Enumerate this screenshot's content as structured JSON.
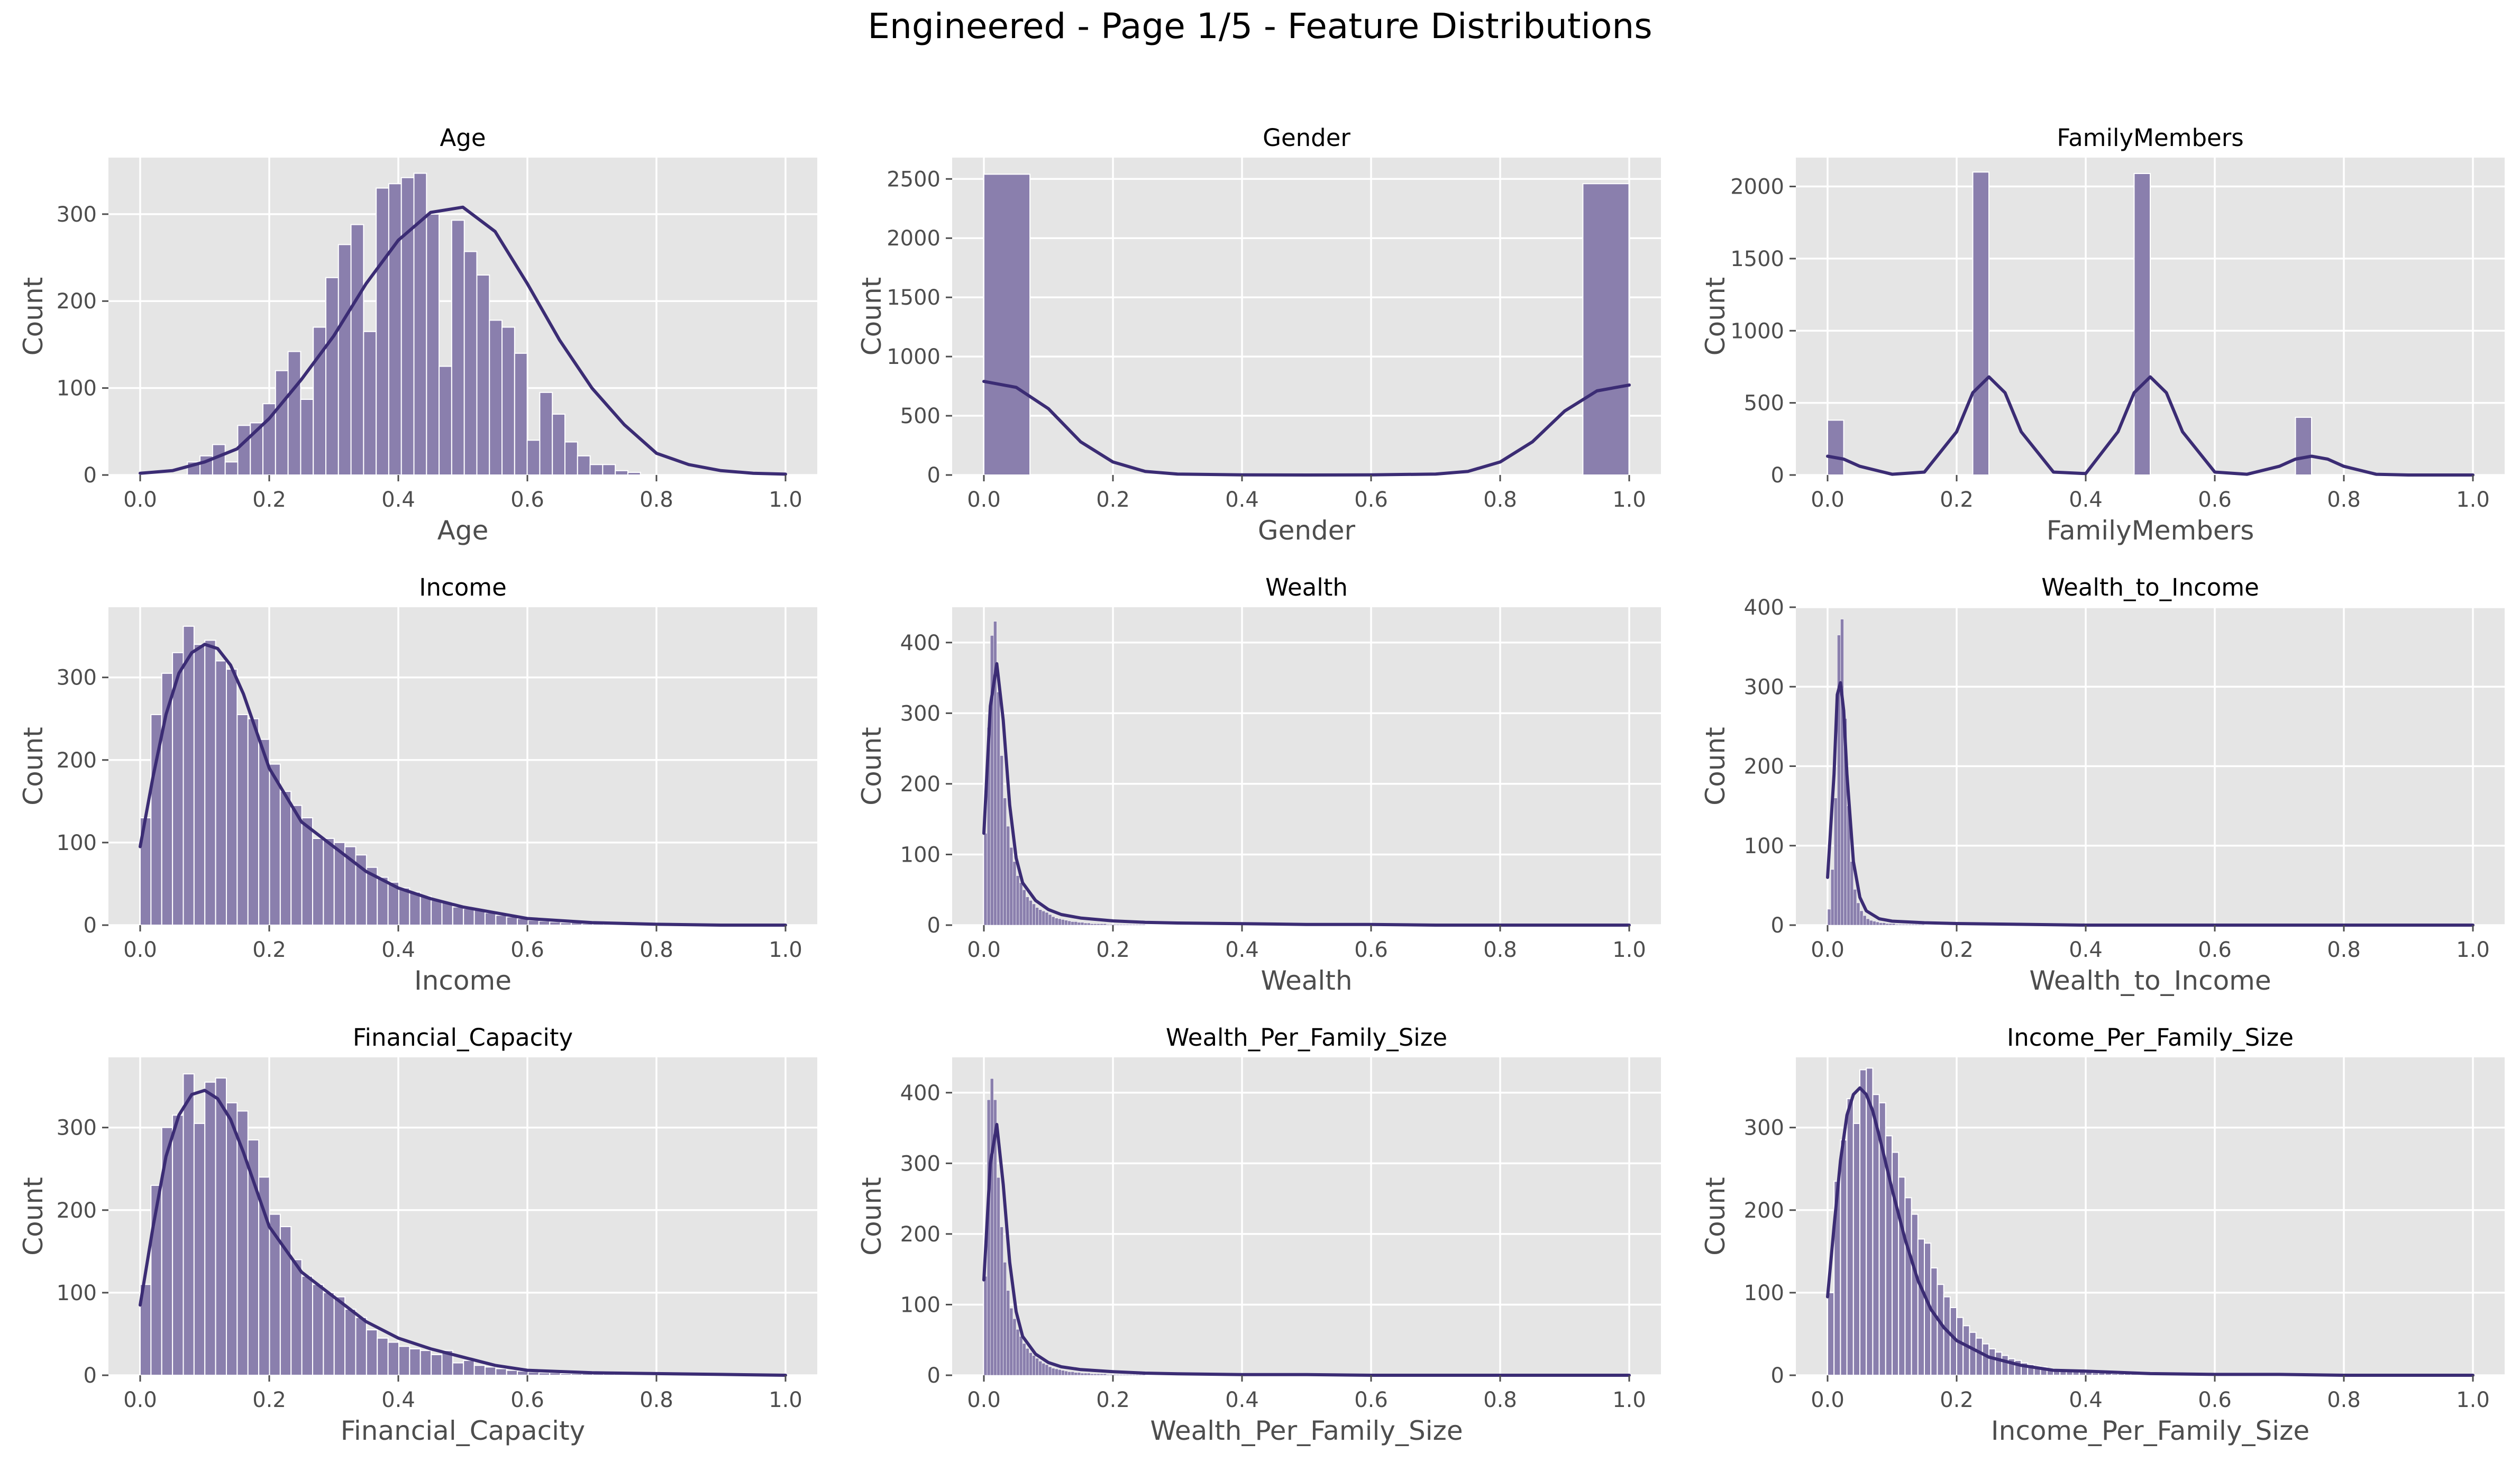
{
  "page": {
    "title": "Engineered - Page 1/5 - Feature Distributions"
  },
  "style": {
    "panel_bg": "#e5e5e5",
    "grid": "#ffffff",
    "bar_fill": "#8a7fad",
    "bar_edge": "#ffffff",
    "kde_line": "#3b2c74",
    "tick_text": "#4d4d4d",
    "label_text": "#4d4d4d",
    "title_text": "#000000"
  },
  "chart_data": [
    {
      "type": "histogram",
      "title": "Age",
      "xlabel": "Age",
      "ylabel": "Count",
      "xlim": [
        0,
        1
      ],
      "ylim": [
        0,
        365
      ],
      "xticks": [
        0,
        0.2,
        0.4,
        0.6,
        0.8,
        1
      ],
      "xtick_labels": [
        "0.0",
        "0.2",
        "0.4",
        "0.6",
        "0.8",
        "1.0"
      ],
      "yticks": [
        0,
        100,
        200,
        300
      ],
      "ytick_labels": [
        "0",
        "100",
        "200",
        "300"
      ],
      "bins": {
        "start": 0.0732,
        "width": 0.0195,
        "counts": [
          15,
          22,
          35,
          15,
          57,
          60,
          82,
          120,
          142,
          87,
          170,
          227,
          265,
          288,
          165,
          330,
          335,
          342,
          347,
          300,
          125,
          293,
          257,
          230,
          178,
          170,
          140,
          40,
          95,
          70,
          38,
          22,
          12,
          12,
          5,
          3
        ]
      },
      "kde": {
        "x": [
          0,
          0.05,
          0.1,
          0.15,
          0.2,
          0.25,
          0.3,
          0.35,
          0.4,
          0.45,
          0.5,
          0.55,
          0.6,
          0.65,
          0.7,
          0.75,
          0.8,
          0.85,
          0.9,
          0.95,
          1.0
        ],
        "y": [
          2,
          5,
          15,
          30,
          65,
          110,
          160,
          220,
          270,
          302,
          308,
          280,
          220,
          155,
          100,
          58,
          25,
          12,
          5,
          2,
          1
        ]
      }
    },
    {
      "type": "histogram",
      "title": "Gender",
      "xlabel": "Gender",
      "ylabel": "Count",
      "xlim": [
        0,
        1
      ],
      "ylim": [
        0,
        2680
      ],
      "xticks": [
        0,
        0.2,
        0.4,
        0.6,
        0.8,
        1
      ],
      "xtick_labels": [
        "0.0",
        "0.2",
        "0.4",
        "0.6",
        "0.8",
        "1.0"
      ],
      "yticks": [
        0,
        500,
        1000,
        1500,
        2000,
        2500
      ],
      "ytick_labels": [
        "0",
        "500",
        "1000",
        "1500",
        "2000",
        "2500"
      ],
      "bins": {
        "start": 0,
        "width": 0.0714,
        "counts": [
          2540,
          0,
          0,
          0,
          0,
          0,
          0,
          0,
          0,
          0,
          0,
          0,
          0,
          2460
        ]
      },
      "kde": {
        "x": [
          0,
          0.05,
          0.1,
          0.15,
          0.2,
          0.25,
          0.3,
          0.4,
          0.5,
          0.6,
          0.7,
          0.75,
          0.8,
          0.85,
          0.9,
          0.95,
          1.0
        ],
        "y": [
          790,
          740,
          560,
          280,
          110,
          30,
          8,
          1,
          0,
          1,
          8,
          30,
          110,
          280,
          540,
          710,
          760
        ]
      }
    },
    {
      "type": "histogram",
      "title": "FamilyMembers",
      "xlabel": "FamilyMembers",
      "ylabel": "Count",
      "xlim": [
        0,
        1
      ],
      "ylim": [
        0,
        2200
      ],
      "xticks": [
        0,
        0.2,
        0.4,
        0.6,
        0.8,
        1
      ],
      "xtick_labels": [
        "0.0",
        "0.2",
        "0.4",
        "0.6",
        "0.8",
        "1.0"
      ],
      "yticks": [
        0,
        500,
        1000,
        1500,
        2000
      ],
      "ytick_labels": [
        "0",
        "500",
        "1000",
        "1500",
        "2000"
      ],
      "bins": {
        "start": 0,
        "width": 0.025,
        "counts": [
          380,
          0,
          0,
          0,
          0,
          0,
          0,
          0,
          0,
          2100,
          0,
          0,
          0,
          0,
          0,
          0,
          0,
          0,
          0,
          2090,
          0,
          0,
          0,
          0,
          0,
          0,
          0,
          0,
          0,
          400,
          0,
          0,
          0,
          0,
          0,
          0,
          0,
          0,
          0,
          0
        ]
      },
      "kde": {
        "x": [
          0,
          0.025,
          0.05,
          0.1,
          0.15,
          0.2,
          0.225,
          0.25,
          0.275,
          0.3,
          0.35,
          0.4,
          0.45,
          0.475,
          0.5,
          0.525,
          0.55,
          0.6,
          0.65,
          0.7,
          0.725,
          0.75,
          0.775,
          0.8,
          0.85,
          0.9,
          1.0
        ],
        "y": [
          130,
          110,
          60,
          5,
          20,
          300,
          570,
          680,
          570,
          300,
          20,
          10,
          300,
          570,
          680,
          570,
          300,
          20,
          5,
          60,
          110,
          130,
          110,
          60,
          5,
          0,
          0
        ]
      }
    },
    {
      "type": "histogram",
      "title": "Income",
      "xlabel": "Income",
      "ylabel": "Count",
      "xlim": [
        0,
        1
      ],
      "ylim": [
        0,
        385
      ],
      "xticks": [
        0,
        0.2,
        0.4,
        0.6,
        0.8,
        1
      ],
      "xtick_labels": [
        "0.0",
        "0.2",
        "0.4",
        "0.6",
        "0.8",
        "1.0"
      ],
      "yticks": [
        0,
        100,
        200,
        300
      ],
      "ytick_labels": [
        "0",
        "100",
        "200",
        "300"
      ],
      "bins": {
        "start": 0,
        "width": 0.0167,
        "counts": [
          130,
          255,
          305,
          330,
          362,
          340,
          345,
          320,
          310,
          255,
          250,
          225,
          195,
          162,
          145,
          130,
          105,
          105,
          100,
          95,
          85,
          70,
          58,
          52,
          45,
          40,
          35,
          30,
          27,
          22,
          20,
          18,
          15,
          12,
          10,
          8,
          6,
          5,
          4,
          3,
          3,
          2,
          2,
          2,
          1,
          1,
          1,
          1,
          1,
          1,
          1,
          1,
          1,
          1,
          1,
          1,
          1,
          1,
          1,
          1
        ]
      },
      "kde": {
        "x": [
          0,
          0.02,
          0.04,
          0.06,
          0.08,
          0.1,
          0.12,
          0.14,
          0.16,
          0.18,
          0.2,
          0.25,
          0.3,
          0.35,
          0.4,
          0.45,
          0.5,
          0.55,
          0.6,
          0.7,
          0.8,
          0.9,
          1.0
        ],
        "y": [
          95,
          180,
          255,
          305,
          330,
          340,
          335,
          315,
          280,
          235,
          190,
          125,
          95,
          65,
          45,
          32,
          22,
          15,
          8,
          3,
          1,
          0,
          0
        ]
      }
    },
    {
      "type": "histogram",
      "title": "Wealth",
      "xlabel": "Wealth",
      "ylabel": "Count",
      "xlim": [
        0,
        1
      ],
      "ylim": [
        0,
        450
      ],
      "xticks": [
        0,
        0.2,
        0.4,
        0.6,
        0.8,
        1
      ],
      "xtick_labels": [
        "0.0",
        "0.2",
        "0.4",
        "0.6",
        "0.8",
        "1.0"
      ],
      "yticks": [
        0,
        100,
        200,
        300,
        400
      ],
      "ytick_labels": [
        "0",
        "100",
        "200",
        "300",
        "400"
      ],
      "bins": {
        "start": 0,
        "width": 0.005,
        "counts": [
          130,
          280,
          410,
          430,
          330,
          240,
          180,
          140,
          110,
          90,
          70,
          60,
          50,
          40,
          35,
          30,
          25,
          22,
          20,
          18,
          15,
          12,
          10,
          9,
          8,
          7,
          6,
          5,
          5,
          4,
          4,
          3,
          3,
          2,
          2,
          2,
          2,
          2,
          1,
          1,
          1,
          1,
          1,
          1,
          1,
          1,
          1,
          1,
          1,
          1
        ]
      },
      "kde": {
        "x": [
          0,
          0.01,
          0.02,
          0.03,
          0.04,
          0.05,
          0.06,
          0.08,
          0.1,
          0.12,
          0.15,
          0.2,
          0.25,
          0.3,
          0.4,
          0.5,
          0.6,
          0.7,
          0.8,
          0.9,
          1.0
        ],
        "y": [
          130,
          310,
          370,
          290,
          170,
          95,
          60,
          35,
          22,
          15,
          10,
          6,
          4,
          3,
          2,
          1,
          1,
          0,
          0,
          0,
          0
        ]
      }
    },
    {
      "type": "histogram",
      "title": "Wealth_to_Income",
      "xlabel": "Wealth_to_Income",
      "ylabel": "Count",
      "xlim": [
        0,
        1
      ],
      "ylim": [
        0,
        400
      ],
      "xticks": [
        0,
        0.2,
        0.4,
        0.6,
        0.8,
        1
      ],
      "xtick_labels": [
        "0.0",
        "0.2",
        "0.4",
        "0.6",
        "0.8",
        "1.0"
      ],
      "yticks": [
        0,
        100,
        200,
        300,
        400
      ],
      "ytick_labels": [
        "0",
        "100",
        "200",
        "300",
        "400"
      ],
      "bins": {
        "start": 0,
        "width": 0.005,
        "counts": [
          20,
          70,
          160,
          365,
          385,
          260,
          150,
          80,
          45,
          28,
          18,
          12,
          8,
          6,
          5,
          4,
          3,
          3,
          2,
          2,
          2,
          1,
          1,
          1,
          1,
          1,
          1,
          1,
          1,
          1
        ]
      },
      "kde": {
        "x": [
          0,
          0.01,
          0.015,
          0.02,
          0.025,
          0.03,
          0.04,
          0.05,
          0.06,
          0.08,
          0.1,
          0.15,
          0.2,
          0.3,
          0.4,
          0.6,
          0.8,
          1.0
        ],
        "y": [
          60,
          190,
          290,
          305,
          270,
          190,
          80,
          35,
          18,
          8,
          5,
          3,
          2,
          1,
          0,
          0,
          0,
          0
        ]
      }
    },
    {
      "type": "histogram",
      "title": "Financial_Capacity",
      "xlabel": "Financial_Capacity",
      "ylabel": "Count",
      "xlim": [
        0,
        1
      ],
      "ylim": [
        0,
        385
      ],
      "xticks": [
        0,
        0.2,
        0.4,
        0.6,
        0.8,
        1
      ],
      "xtick_labels": [
        "0.0",
        "0.2",
        "0.4",
        "0.6",
        "0.8",
        "1.0"
      ],
      "yticks": [
        0,
        100,
        200,
        300
      ],
      "ytick_labels": [
        "0",
        "100",
        "200",
        "300"
      ],
      "bins": {
        "start": 0,
        "width": 0.0167,
        "counts": [
          110,
          230,
          300,
          315,
          365,
          305,
          355,
          360,
          330,
          320,
          285,
          240,
          195,
          180,
          140,
          120,
          110,
          100,
          95,
          80,
          70,
          55,
          45,
          40,
          35,
          32,
          30,
          25,
          30,
          15,
          18,
          12,
          10,
          8,
          6,
          5,
          4,
          3,
          3,
          2,
          2,
          2,
          2,
          2,
          3,
          2,
          1,
          1,
          1,
          1,
          1,
          1,
          1,
          1,
          1,
          1,
          1,
          1,
          1,
          1
        ]
      },
      "kde": {
        "x": [
          0,
          0.02,
          0.04,
          0.06,
          0.08,
          0.1,
          0.12,
          0.14,
          0.16,
          0.18,
          0.2,
          0.25,
          0.3,
          0.35,
          0.4,
          0.45,
          0.5,
          0.55,
          0.6,
          0.7,
          0.8,
          0.9,
          1.0
        ],
        "y": [
          85,
          180,
          265,
          315,
          340,
          345,
          335,
          310,
          270,
          225,
          180,
          125,
          95,
          65,
          45,
          32,
          22,
          12,
          6,
          3,
          2,
          1,
          0
        ]
      }
    },
    {
      "type": "histogram",
      "title": "Wealth_Per_Family_Size",
      "xlabel": "Wealth_Per_Family_Size",
      "ylabel": "Count",
      "xlim": [
        0,
        1
      ],
      "ylim": [
        0,
        450
      ],
      "xticks": [
        0,
        0.2,
        0.4,
        0.6,
        0.8,
        1
      ],
      "xtick_labels": [
        "0.0",
        "0.2",
        "0.4",
        "0.6",
        "0.8",
        "1.0"
      ],
      "yticks": [
        0,
        100,
        200,
        300,
        400
      ],
      "ytick_labels": [
        "0",
        "100",
        "200",
        "300",
        "400"
      ],
      "bins": {
        "start": 0,
        "width": 0.005,
        "counts": [
          140,
          390,
          420,
          390,
          280,
          210,
          160,
          120,
          95,
          80,
          65,
          55,
          45,
          38,
          32,
          28,
          24,
          20,
          17,
          15,
          12,
          10,
          9,
          8,
          7,
          6,
          5,
          5,
          4,
          4,
          3,
          3,
          3,
          2,
          2,
          2,
          2,
          2,
          1,
          1,
          1,
          1,
          1,
          1,
          1,
          1,
          1,
          1,
          1,
          1
        ]
      },
      "kde": {
        "x": [
          0,
          0.01,
          0.02,
          0.03,
          0.04,
          0.05,
          0.06,
          0.08,
          0.1,
          0.12,
          0.15,
          0.2,
          0.25,
          0.3,
          0.4,
          0.5,
          0.6,
          0.7,
          0.8,
          0.9,
          1.0
        ],
        "y": [
          135,
          300,
          355,
          270,
          160,
          90,
          55,
          30,
          18,
          12,
          8,
          5,
          3,
          2,
          1,
          1,
          0,
          0,
          0,
          0,
          0
        ]
      }
    },
    {
      "type": "histogram",
      "title": "Income_Per_Family_Size",
      "xlabel": "Income_Per_Family_Size",
      "ylabel": "Count",
      "xlim": [
        0,
        1
      ],
      "ylim": [
        0,
        385
      ],
      "xticks": [
        0,
        0.2,
        0.4,
        0.6,
        0.8,
        1
      ],
      "xtick_labels": [
        "0.0",
        "0.2",
        "0.4",
        "0.6",
        "0.8",
        "1.0"
      ],
      "yticks": [
        0,
        100,
        200,
        300
      ],
      "ytick_labels": [
        "0",
        "100",
        "200",
        "300"
      ],
      "bins": {
        "start": 0,
        "width": 0.01,
        "counts": [
          100,
          235,
          285,
          335,
          305,
          370,
          372,
          340,
          330,
          290,
          270,
          240,
          215,
          195,
          165,
          160,
          130,
          110,
          95,
          82,
          70,
          60,
          52,
          45,
          38,
          32,
          28,
          24,
          20,
          18,
          15,
          13,
          11,
          10,
          8,
          7,
          6,
          5,
          5,
          4,
          4,
          3,
          3,
          3,
          2,
          2,
          2,
          2,
          2,
          2,
          1,
          1,
          1,
          1,
          1,
          1,
          1,
          1,
          1,
          1,
          1,
          1,
          1,
          1,
          1,
          1,
          1,
          1,
          1,
          1,
          1,
          1,
          1,
          1,
          1,
          1,
          1,
          1,
          1,
          1,
          1,
          1,
          1,
          1,
          1,
          1,
          1,
          1,
          1,
          1,
          1,
          1,
          1,
          1,
          1,
          1,
          1,
          1,
          1,
          1
        ]
      },
      "kde": {
        "x": [
          0,
          0.01,
          0.02,
          0.03,
          0.04,
          0.05,
          0.06,
          0.07,
          0.08,
          0.1,
          0.12,
          0.14,
          0.16,
          0.18,
          0.2,
          0.25,
          0.3,
          0.35,
          0.4,
          0.5,
          0.6,
          0.7,
          0.8,
          0.9,
          1.0
        ],
        "y": [
          95,
          180,
          260,
          315,
          340,
          348,
          340,
          320,
          290,
          225,
          165,
          115,
          80,
          58,
          42,
          22,
          12,
          6,
          5,
          2,
          1,
          1,
          0,
          0,
          0
        ]
      }
    }
  ]
}
